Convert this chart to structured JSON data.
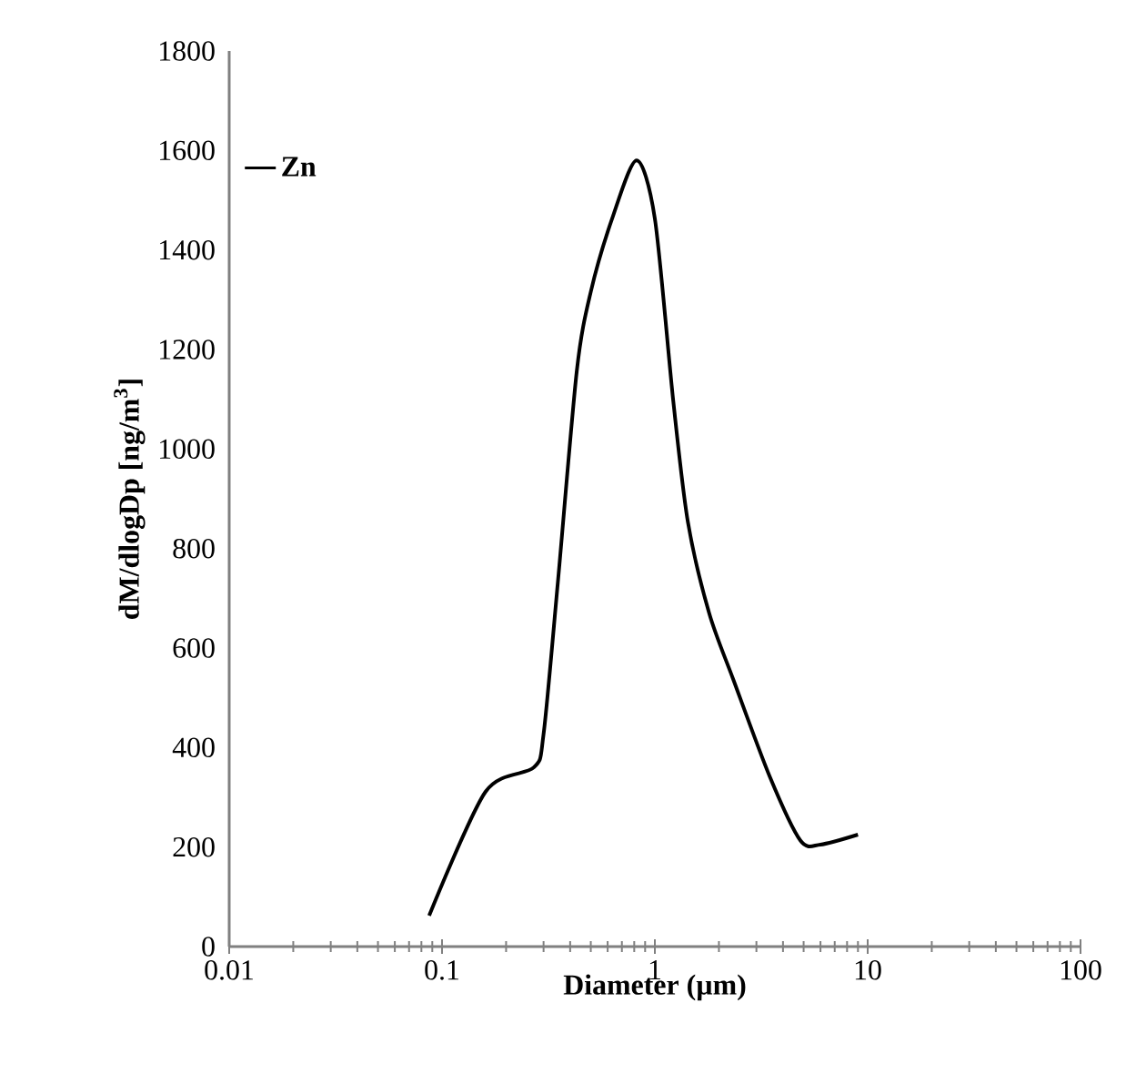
{
  "chart_data": {
    "type": "line",
    "xlabel": "Diameter (µm)",
    "ylabel": "dM/dlogDp [ng/m$^{3}$]",
    "x": [
      0.087,
      0.16,
      0.27,
      0.3,
      0.35,
      0.43,
      0.5,
      0.63,
      0.82,
      1.0,
      1.22,
      1.43,
      1.8,
      2.34,
      3.47,
      4.83,
      6,
      9
    ],
    "series": [
      {
        "name": "Zn",
        "color": "#000000",
        "values": [
          62,
          311,
          360,
          427,
          731,
          1158,
          1316,
          1463,
          1580,
          1463,
          1097,
          853,
          670,
          536,
          341,
          213,
          205,
          225
        ]
      }
    ],
    "log": "x",
    "xlim": [
      0.01,
      100
    ],
    "xticks": [
      0.01,
      0.1,
      1,
      10,
      100
    ],
    "ylim": [
      0,
      1800
    ],
    "yticks": [
      0,
      200,
      400,
      600,
      800,
      1000,
      1200,
      1400,
      1600,
      1800
    ],
    "grid": false,
    "legend": "top left",
    "marker": "none",
    "line_style": "solid"
  }
}
